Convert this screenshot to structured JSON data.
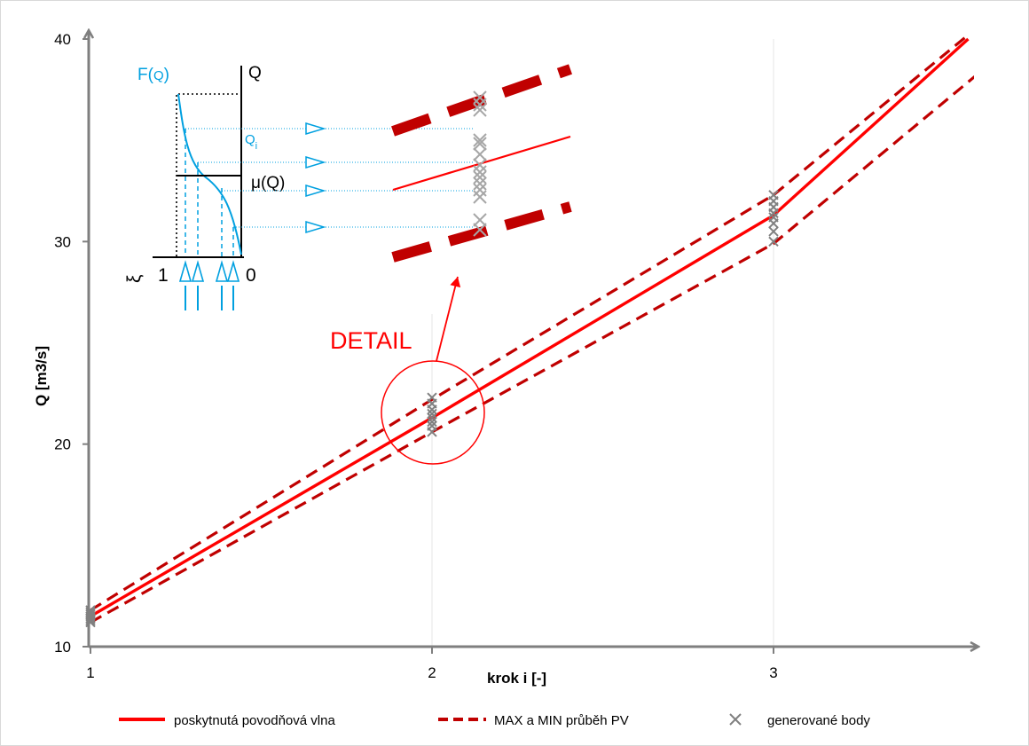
{
  "chart_data": {
    "type": "line",
    "xlabel": "krok i [-]",
    "ylabel": "Q [m3/s]",
    "xlim": [
      1,
      3.6
    ],
    "ylim": [
      10,
      40
    ],
    "xticks": [
      1,
      2,
      3
    ],
    "yticks": [
      10,
      20,
      30,
      40
    ],
    "grid": "vertical lines at x ticks",
    "legend_position": "bottom",
    "series": [
      {
        "name": "poskytnutá povodňová vlna",
        "style": "solid",
        "color": "#ff0000",
        "x": [
          1,
          2,
          3,
          3.57
        ],
        "y": [
          11.5,
          21.3,
          31.3,
          40
        ]
      },
      {
        "name": "MAX a MIN průběh PV",
        "style": "dashed",
        "color": "#c00000",
        "x": [
          1,
          2,
          3,
          3.57
        ],
        "y": [
          11.8,
          22.2,
          32.3,
          40.2
        ]
      },
      {
        "name": "",
        "style": "dashed",
        "color": "#c00000",
        "x": [
          1,
          2,
          3,
          3.6
        ],
        "y": [
          11.2,
          20.6,
          29.9,
          38.3
        ]
      },
      {
        "name": "generované body",
        "style": "markers",
        "color": "#808080",
        "points": [
          [
            1,
            11.2
          ],
          [
            1,
            11.3
          ],
          [
            1,
            11.4
          ],
          [
            1,
            11.5
          ],
          [
            1,
            11.6
          ],
          [
            1,
            11.7
          ],
          [
            1,
            11.8
          ],
          [
            2,
            20.6
          ],
          [
            2,
            20.9
          ],
          [
            2,
            21.1
          ],
          [
            2,
            21.3
          ],
          [
            2,
            21.5
          ],
          [
            2,
            21.7
          ],
          [
            2,
            22.0
          ],
          [
            2,
            22.3
          ],
          [
            3,
            30.0
          ],
          [
            3,
            30.5
          ],
          [
            3,
            30.9
          ],
          [
            3,
            31.2
          ],
          [
            3,
            31.4
          ],
          [
            3,
            31.7
          ],
          [
            3,
            32.0
          ],
          [
            3,
            32.3
          ]
        ]
      }
    ],
    "annotations": {
      "detail_label": "DETAIL",
      "inset": {
        "f_label_prefix": "F(",
        "f_label_q": "Q",
        "f_label_suffix": ")",
        "q_axis_label": "Q",
        "qi_label": "Q",
        "qi_subscript": "i",
        "mu_label": "μ(Q)",
        "xi_label": "ξ",
        "xi_one": "1",
        "xi_zero": "0"
      }
    }
  },
  "colors": {
    "main_line": "#ff0000",
    "band_line": "#c00000",
    "markers": "#808080",
    "inset_blue": "#00a0e0",
    "axis": "#7f7f7f"
  }
}
